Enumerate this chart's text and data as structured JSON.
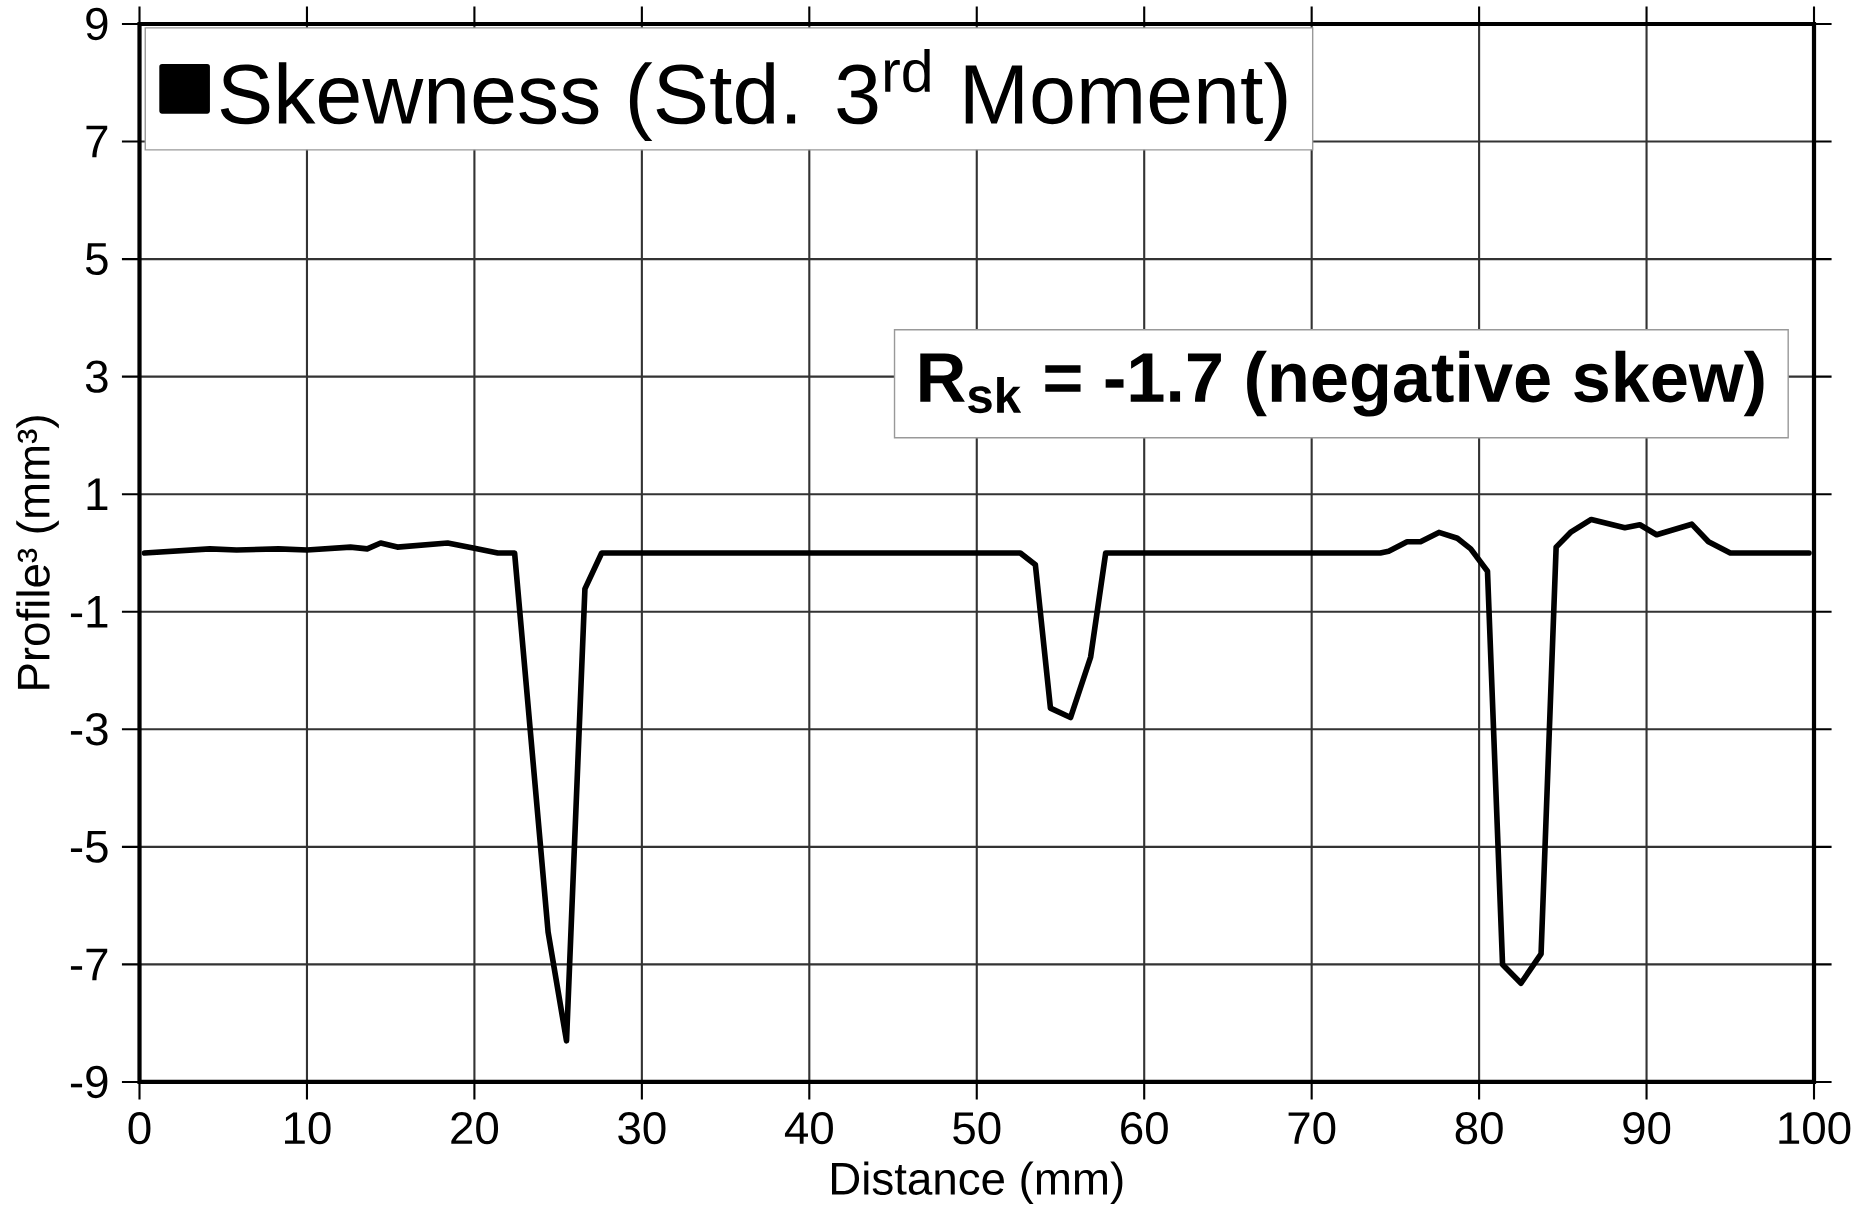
{
  "chart_data": {
    "type": "line",
    "xlabel": "Distance (mm)",
    "ylabel": "Profile³ (mm³)",
    "xlim": [
      0,
      100
    ],
    "xticks": [
      0,
      10,
      20,
      30,
      40,
      50,
      60,
      70,
      80,
      90,
      100
    ],
    "ylim": [
      -9,
      9
    ],
    "yticks": [
      -9,
      -7,
      -5,
      -3,
      -1,
      1,
      3,
      5,
      7,
      9
    ],
    "grid": true,
    "legend": "top left",
    "annotations": [
      "**R$_{sk}$ = -1.7 (negative skew)**"
    ],
    "series": [
      {
        "name": "Skewness (Std. 3$^{rd}$ Moment)",
        "color": "#000000",
        "x": [
          0.3,
          4.2,
          5.8,
          8.3,
          10,
          12.6,
          13.6,
          14.4,
          15.4,
          18.4,
          20,
          21.4,
          22.4,
          24.4,
          25.5,
          26.6,
          27.6,
          52.6,
          53.5,
          54.4,
          55.6,
          56.8,
          57.7,
          74.1,
          74.6,
          75.7,
          76.5,
          77.6,
          78.7,
          79.5,
          80.5,
          81.4,
          82.5,
          83.7,
          84.6,
          85.5,
          86.7,
          88.7,
          89.6,
          90.6,
          92.7,
          93.7,
          95,
          99.7
        ],
        "values": [
          0,
          0.07,
          0.05,
          0.07,
          0.05,
          0.1,
          0.07,
          0.17,
          0.1,
          0.17,
          0.08,
          0,
          0,
          -6.45,
          -8.3,
          -0.61,
          0,
          0,
          -0.2,
          -2.64,
          -2.8,
          -1.77,
          0,
          0,
          0.03,
          0.19,
          0.19,
          0.35,
          0.25,
          0.07,
          -0.31,
          -7.0,
          -7.32,
          -6.82,
          0.1,
          0.36,
          0.57,
          0.43,
          0.48,
          0.31,
          0.49,
          0.19,
          0,
          0
        ]
      }
    ]
  }
}
